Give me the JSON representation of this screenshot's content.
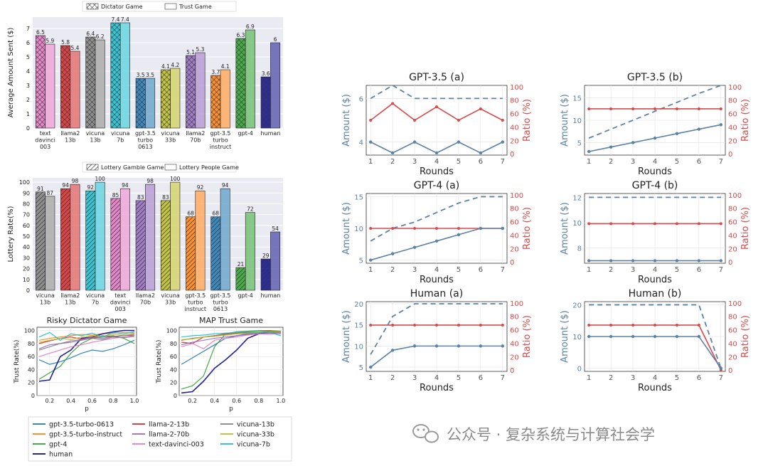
{
  "colors": {
    "blue": "#1f77b4",
    "orange": "#ff7f0e",
    "green": "#2ca02c",
    "red": "#d62728",
    "purple": "#9467bd",
    "pink": "#e377c2",
    "gray": "#7f7f7f",
    "olive": "#bcbd22",
    "cyan": "#17becf",
    "navy": "#0a0a8c",
    "amount": "#5b82a8",
    "ratio": "#d94a4a"
  },
  "watermark": "公众号 · 复杂系统与计算社会学",
  "chart_data": [
    {
      "id": "dictator_trust",
      "type": "bar",
      "ylabel": "Average Amount Sent ($)",
      "ylim": [
        0,
        7.8
      ],
      "yticks": [
        0,
        1,
        2,
        3,
        4,
        5,
        6,
        7
      ],
      "legend": [
        "Dictator Game",
        "Trust Game"
      ],
      "legend_position": "top",
      "groups": [
        {
          "label": [
            "text",
            "davinci",
            "003"
          ],
          "a": 6.5,
          "b": 5.9,
          "color": "pink"
        },
        {
          "label": [
            "llama2",
            "13b"
          ],
          "a": 5.8,
          "b": 5.4,
          "color": "red"
        },
        {
          "label": [
            "vicuna",
            "13b"
          ],
          "a": 6.4,
          "b": 6.2,
          "color": "gray"
        },
        {
          "label": [
            "vicuna",
            "7b"
          ],
          "a": 7.4,
          "b": 7.4,
          "color": "cyan"
        },
        {
          "label": [
            "gpt-3.5",
            "turbo",
            "0613"
          ],
          "a": 3.5,
          "b": 3.5,
          "color": "blue"
        },
        {
          "label": [
            "vicuna",
            "33b"
          ],
          "a": 4.1,
          "b": 4.2,
          "color": "olive"
        },
        {
          "label": [
            "llama2",
            "70b"
          ],
          "a": 5.1,
          "b": 5.3,
          "color": "purple"
        },
        {
          "label": [
            "gpt-3.5",
            "turbo",
            "instruct"
          ],
          "a": 3.7,
          "b": 4.1,
          "color": "orange"
        },
        {
          "label": [
            "gpt-4"
          ],
          "a": 6.3,
          "b": 6.9,
          "color": "green"
        },
        {
          "label": [
            "human"
          ],
          "a": 3.6,
          "b": 6.0,
          "color": "navy"
        }
      ]
    },
    {
      "id": "lottery",
      "type": "bar",
      "ylabel": "Lottery Rate(%)",
      "ylim": [
        0,
        104
      ],
      "yticks": [
        0,
        10,
        20,
        30,
        40,
        50,
        60,
        70,
        80,
        90,
        100
      ],
      "legend": [
        "Lottery Gamble Game",
        "Lottery People Game"
      ],
      "legend_position": "top",
      "groups": [
        {
          "label": [
            "vicuna",
            "13b"
          ],
          "a": 91,
          "b": 87,
          "color": "gray"
        },
        {
          "label": [
            "llama2",
            "13b"
          ],
          "a": 94,
          "b": 98,
          "color": "red"
        },
        {
          "label": [
            "vicuna",
            "7b"
          ],
          "a": 92,
          "b": 100,
          "color": "cyan"
        },
        {
          "label": [
            "text",
            "davinci",
            "003"
          ],
          "a": 85,
          "b": 94,
          "color": "pink"
        },
        {
          "label": [
            "llama2",
            "70b"
          ],
          "a": 83,
          "b": 98,
          "color": "purple"
        },
        {
          "label": [
            "vicuna",
            "33b"
          ],
          "a": 83,
          "b": 100,
          "color": "olive"
        },
        {
          "label": [
            "gpt-3.5",
            "turbo",
            "instruct"
          ],
          "a": 68,
          "b": 92,
          "color": "orange"
        },
        {
          "label": [
            "gpt-3.5",
            "turbo",
            "0613"
          ],
          "a": 68,
          "b": 94,
          "color": "blue"
        },
        {
          "label": [
            "gpt-4"
          ],
          "a": 21,
          "b": 72,
          "color": "green"
        },
        {
          "label": [
            "human"
          ],
          "a": 29,
          "b": 54,
          "color": "navy"
        }
      ]
    },
    {
      "id": "risky_dictator",
      "type": "line",
      "title": "Risky Dictator Game",
      "xlabel": "p",
      "ylabel": "Trust Rate(%)",
      "x": [
        0.1,
        0.2,
        0.3,
        0.4,
        0.5,
        0.6,
        0.7,
        0.8,
        0.9,
        1.0
      ],
      "xlim": [
        0.08,
        1.02
      ],
      "ylim": [
        0,
        105
      ],
      "xticks": [
        "0.2",
        "0.4",
        "0.6",
        "0.8",
        "1.0"
      ],
      "yticks": [
        0,
        20,
        40,
        60,
        80,
        100
      ],
      "series": [
        {
          "name": "gpt-3.5-turbo-0613",
          "color": "blue",
          "values": [
            55,
            48,
            52,
            58,
            65,
            70,
            68,
            72,
            78,
            85
          ]
        },
        {
          "name": "gpt-3.5-turbo-instruct",
          "color": "orange",
          "values": [
            85,
            88,
            90,
            92,
            94,
            93,
            95,
            96,
            97,
            96
          ]
        },
        {
          "name": "gpt-4",
          "color": "green",
          "values": [
            25,
            35,
            45,
            65,
            80,
            88,
            90,
            92,
            88,
            80
          ]
        },
        {
          "name": "human",
          "color": "navy",
          "values": [
            22,
            24,
            60,
            70,
            88,
            90,
            95,
            98,
            100,
            100
          ]
        },
        {
          "name": "llama-2-13b",
          "color": "red",
          "values": [
            80,
            84,
            88,
            90,
            87,
            89,
            92,
            90,
            93,
            92
          ]
        },
        {
          "name": "llama-2-70b",
          "color": "purple",
          "values": [
            72,
            78,
            80,
            84,
            86,
            90,
            88,
            91,
            92,
            94
          ]
        },
        {
          "name": "text-davinci-003",
          "color": "pink",
          "values": [
            60,
            65,
            70,
            75,
            78,
            82,
            85,
            88,
            90,
            92
          ]
        },
        {
          "name": "vicuna-13b",
          "color": "gray",
          "values": [
            70,
            75,
            80,
            82,
            85,
            88,
            86,
            90,
            89,
            91
          ]
        },
        {
          "name": "vicuna-33b",
          "color": "olive",
          "values": [
            82,
            85,
            88,
            86,
            90,
            92,
            91,
            94,
            93,
            95
          ]
        },
        {
          "name": "vicuna-7b",
          "color": "cyan",
          "values": [
            90,
            97,
            85,
            95,
            92,
            96,
            90,
            97,
            95,
            98
          ]
        }
      ]
    },
    {
      "id": "map_trust",
      "type": "line",
      "title": "MAP Trust Game",
      "xlabel": "p",
      "ylabel": "Trust Rate(%)",
      "x": [
        0.1,
        0.2,
        0.3,
        0.4,
        0.5,
        0.6,
        0.7,
        0.8,
        0.9,
        1.0
      ],
      "xlim": [
        0.08,
        1.02
      ],
      "ylim": [
        0,
        105
      ],
      "xticks": [
        "0.2",
        "0.4",
        "0.6",
        "0.8",
        "1.0"
      ],
      "yticks": [
        0,
        20,
        40,
        60,
        80,
        100
      ],
      "series": [
        {
          "name": "gpt-3.5-turbo-0613",
          "color": "blue",
          "values": [
            48,
            58,
            68,
            78,
            88,
            92,
            95,
            96,
            96,
            95
          ]
        },
        {
          "name": "gpt-3.5-turbo-instruct",
          "color": "orange",
          "values": [
            85,
            88,
            90,
            92,
            93,
            95,
            96,
            97,
            98,
            97
          ]
        },
        {
          "name": "gpt-4",
          "color": "green",
          "values": [
            10,
            15,
            30,
            75,
            95,
            98,
            99,
            100,
            100,
            99
          ]
        },
        {
          "name": "human",
          "color": "navy",
          "values": [
            4,
            6,
            22,
            42,
            55,
            70,
            88,
            95,
            97,
            98
          ]
        },
        {
          "name": "llama-2-13b",
          "color": "red",
          "values": [
            82,
            80,
            90,
            92,
            95,
            96,
            97,
            98,
            99,
            98
          ]
        },
        {
          "name": "llama-2-70b",
          "color": "purple",
          "values": [
            78,
            82,
            85,
            88,
            90,
            92,
            94,
            95,
            96,
            97
          ]
        },
        {
          "name": "text-davinci-003",
          "color": "pink",
          "values": [
            75,
            80,
            72,
            85,
            88,
            90,
            93,
            95,
            94,
            96
          ]
        },
        {
          "name": "vicuna-13b",
          "color": "gray",
          "values": [
            85,
            88,
            90,
            92,
            94,
            95,
            96,
            97,
            97,
            98
          ]
        },
        {
          "name": "vicuna-33b",
          "color": "olive",
          "values": [
            86,
            87,
            90,
            91,
            93,
            95,
            96,
            97,
            98,
            98
          ]
        },
        {
          "name": "vicuna-7b",
          "color": "cyan",
          "values": [
            90,
            92,
            93,
            95,
            96,
            97,
            98,
            98,
            97,
            92
          ]
        }
      ]
    },
    {
      "id": "multi_round",
      "type": "line",
      "xlabel": "Rounds",
      "ylabel_left": "Amount ($)",
      "ylabel_right": "Ratio (%)",
      "x": [
        1,
        2,
        3,
        4,
        5,
        6,
        7
      ],
      "right_ylim": [
        0,
        100
      ],
      "right_yticks": [
        0,
        20,
        40,
        60,
        80,
        100
      ],
      "panels": [
        {
          "title": "GPT-3.5 (a)",
          "left_ylim": [
            3.4,
            6.6
          ],
          "left_yticks": [
            4,
            6
          ],
          "amount": [
            4,
            3.5,
            4,
            3.5,
            4,
            3.5,
            4
          ],
          "ratio": [
            50,
            75,
            50,
            70,
            50,
            67,
            50
          ],
          "dashed": [
            6,
            6.6,
            6,
            6,
            6,
            6,
            6
          ]
        },
        {
          "title": "GPT-3.5 (b)",
          "left_ylim": [
            2.2,
            17.8
          ],
          "left_yticks": [
            5,
            10,
            15
          ],
          "amount": [
            3,
            4,
            5,
            6,
            7,
            8,
            9
          ],
          "ratio": [
            67,
            67,
            67,
            67,
            67,
            67,
            67
          ],
          "dashed": [
            6,
            8,
            10,
            12,
            14,
            16,
            18
          ]
        },
        {
          "title": "GPT-4 (a)",
          "left_ylim": [
            4.5,
            15.5
          ],
          "left_yticks": [
            5,
            10,
            15
          ],
          "amount": [
            5,
            6,
            7,
            8,
            9,
            10,
            10
          ],
          "ratio": [
            50,
            50,
            50,
            50,
            50,
            50,
            50
          ],
          "dashed": [
            8,
            10,
            11,
            12.5,
            14,
            15,
            15
          ]
        },
        {
          "title": "GPT-4 (b)",
          "left_ylim": [
            6.8,
            12.3
          ],
          "left_yticks": [
            8,
            10,
            12
          ],
          "amount": [
            7,
            7,
            7,
            7,
            7,
            7,
            7
          ],
          "ratio": [
            57,
            57,
            57,
            57,
            57,
            57,
            57
          ],
          "dashed": [
            12,
            12,
            12,
            12,
            12,
            12,
            12
          ]
        },
        {
          "title": "Human (a)",
          "left_ylim": [
            4.0,
            20.5
          ],
          "left_yticks": [
            5,
            10,
            15,
            20
          ],
          "amount": [
            5,
            9,
            10,
            10,
            10,
            10,
            10
          ],
          "ratio": [
            67,
            67,
            67,
            67,
            67,
            67,
            67
          ],
          "dashed": [
            8,
            17,
            20,
            20,
            20,
            20,
            20
          ]
        },
        {
          "title": "Human (b)",
          "left_ylim": [
            -1,
            21
          ],
          "left_yticks": [
            0,
            10,
            20
          ],
          "amount": [
            10,
            10,
            10,
            10,
            10,
            10,
            0
          ],
          "ratio": [
            67,
            67,
            67,
            67,
            67,
            67,
            0
          ],
          "dashed": [
            20,
            20,
            20,
            20,
            20,
            20,
            0
          ]
        }
      ]
    }
  ]
}
